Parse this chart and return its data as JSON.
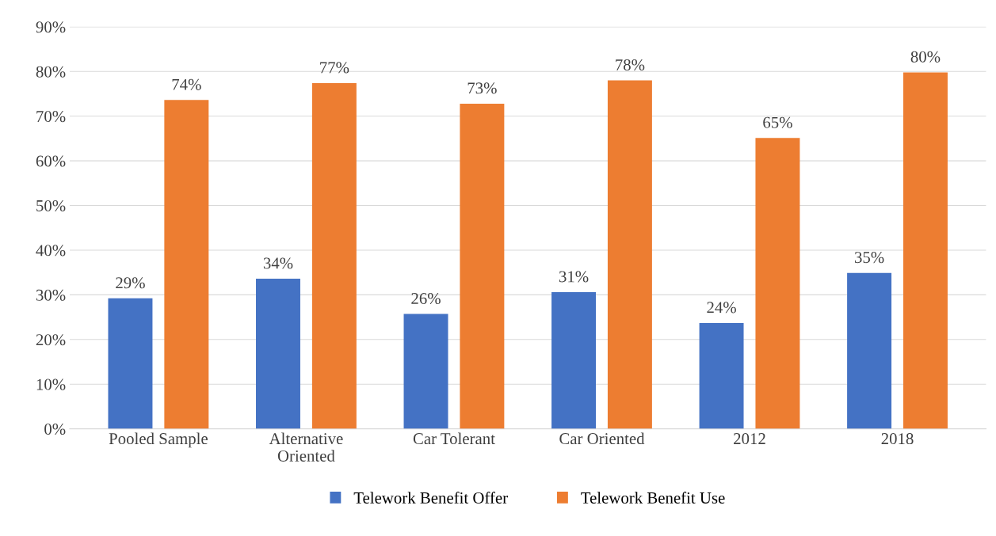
{
  "chart_data": {
    "type": "bar",
    "categories": [
      "Pooled Sample",
      "Alternative\nOriented",
      "Car Tolerant",
      "Car Oriented",
      "2012",
      "2018"
    ],
    "series": [
      {
        "name": "Telework Benefit Offer",
        "color": "#4472c4",
        "values": [
          29.2,
          33.6,
          25.7,
          30.6,
          23.7,
          34.9
        ],
        "value_labels": [
          "29%",
          "34%",
          "26%",
          "31%",
          "24%",
          "35%"
        ]
      },
      {
        "name": "Telework Benefit Use",
        "color": "#ed7d31",
        "values": [
          73.6,
          77.4,
          72.8,
          78.0,
          65.1,
          79.8
        ],
        "value_labels": [
          "74%",
          "77%",
          "73%",
          "78%",
          "65%",
          "80%"
        ]
      }
    ],
    "ylim": [
      0,
      90
    ],
    "yticks": [
      {
        "value": 0,
        "label": "0%"
      },
      {
        "value": 10,
        "label": "10%"
      },
      {
        "value": 20,
        "label": "20%"
      },
      {
        "value": 30,
        "label": "30%"
      },
      {
        "value": 40,
        "label": "40%"
      },
      {
        "value": 50,
        "label": "50%"
      },
      {
        "value": 60,
        "label": "60%"
      },
      {
        "value": 70,
        "label": "70%"
      },
      {
        "value": 80,
        "label": "80%"
      },
      {
        "value": 90,
        "label": "90%"
      }
    ],
    "grid": "y",
    "legend": "bottom"
  }
}
